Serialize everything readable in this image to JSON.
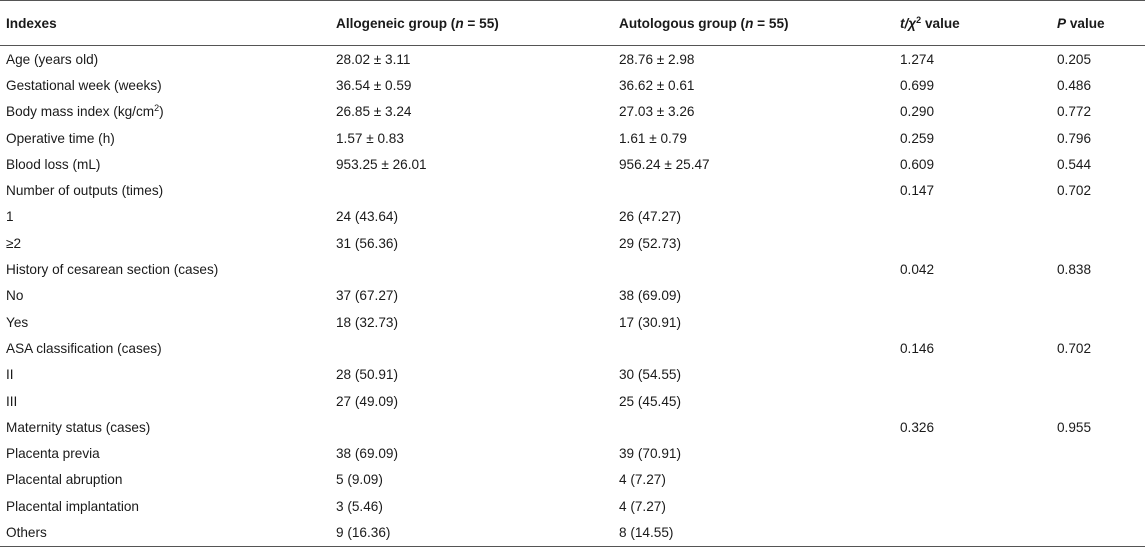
{
  "header": {
    "c0": "Indexes",
    "c1_pre": "Allogeneic group (",
    "c1_n": "n",
    "c1_post": " = 55)",
    "c2_pre": "Autologous group (",
    "c2_n": "n",
    "c2_post": " = 55)",
    "c3_t": "t",
    "c3_mid": "/χ",
    "c3_sup": "2",
    "c3_post": " value",
    "c4_p": "P",
    "c4_post": " value"
  },
  "rows": [
    {
      "label": "Age (years old)",
      "allo": "28.02 ± 3.11",
      "auto": "28.76 ± 2.98",
      "stat": "1.274",
      "p": "0.205"
    },
    {
      "label": "Gestational week (weeks)",
      "allo": "36.54 ± 0.59",
      "auto": "36.62 ± 0.61",
      "stat": "0.699",
      "p": "0.486"
    },
    {
      "label_pre": "Body mass index (kg/cm",
      "label_sup": "2",
      "label_post": ")",
      "allo": "26.85 ± 3.24",
      "auto": "27.03 ± 3.26",
      "stat": "0.290",
      "p": "0.772"
    },
    {
      "label": "Operative time (h)",
      "allo": "1.57 ± 0.83",
      "auto": "1.61 ± 0.79",
      "stat": "0.259",
      "p": "0.796"
    },
    {
      "label": "Blood loss (mL)",
      "allo": "953.25 ± 26.01",
      "auto": "956.24 ± 25.47",
      "stat": "0.609",
      "p": "0.544"
    },
    {
      "label": "Number of outputs (times)",
      "allo": "",
      "auto": "",
      "stat": "0.147",
      "p": "0.702"
    },
    {
      "label": "1",
      "allo": "24 (43.64)",
      "auto": "26 (47.27)",
      "stat": "",
      "p": ""
    },
    {
      "label": "≥2",
      "allo": "31 (56.36)",
      "auto": "29 (52.73)",
      "stat": "",
      "p": ""
    },
    {
      "label": "History of cesarean section (cases)",
      "allo": "",
      "auto": "",
      "stat": "0.042",
      "p": "0.838"
    },
    {
      "label": "No",
      "allo": "37 (67.27)",
      "auto": "38 (69.09)",
      "stat": "",
      "p": ""
    },
    {
      "label": "Yes",
      "allo": "18 (32.73)",
      "auto": "17 (30.91)",
      "stat": "",
      "p": ""
    },
    {
      "label": "ASA classification (cases)",
      "allo": "",
      "auto": "",
      "stat": "0.146",
      "p": "0.702"
    },
    {
      "label": "II",
      "allo": "28 (50.91)",
      "auto": "30 (54.55)",
      "stat": "",
      "p": ""
    },
    {
      "label": "III",
      "allo": "27 (49.09)",
      "auto": "25 (45.45)",
      "stat": "",
      "p": ""
    },
    {
      "label": "Maternity status (cases)",
      "allo": "",
      "auto": "",
      "stat": "0.326",
      "p": "0.955"
    },
    {
      "label": "Placenta previa",
      "allo": "38 (69.09)",
      "auto": "39 (70.91)",
      "stat": "",
      "p": ""
    },
    {
      "label": "Placental abruption",
      "allo": "5 (9.09)",
      "auto": "4 (7.27)",
      "stat": "",
      "p": ""
    },
    {
      "label": "Placental implantation",
      "allo": "3 (5.46)",
      "auto": "4 (7.27)",
      "stat": "",
      "p": ""
    },
    {
      "label": "Others",
      "allo": "9 (16.36)",
      "auto": "8 (14.55)",
      "stat": "",
      "p": ""
    }
  ]
}
